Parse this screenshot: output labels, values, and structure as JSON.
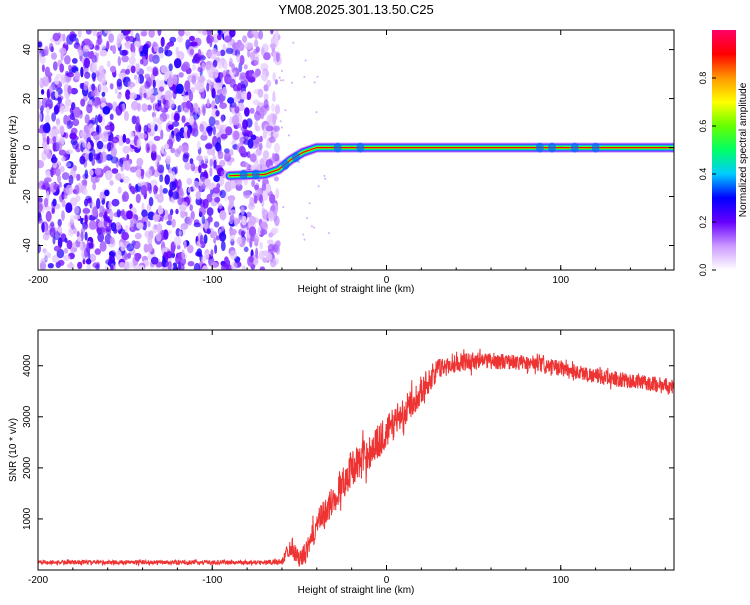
{
  "title": "YM08.2025.301.13.50.C25",
  "chart_data": [
    {
      "type": "heatmap",
      "title": "YM08.2025.301.13.50.C25",
      "xlabel": "Height of straight line (km)",
      "ylabel": "Frequency (Hz)",
      "xlim": [
        -200,
        165
      ],
      "ylim": [
        -50,
        48
      ],
      "x_ticks": [
        -200,
        -100,
        0,
        100
      ],
      "y_ticks": [
        -40,
        -20,
        0,
        20,
        40
      ],
      "colorbar": {
        "label": "Normalized spectral amplitude",
        "range": [
          0,
          1
        ],
        "ticks": [
          "0.0",
          "0.2",
          "0.4",
          "0.6",
          "0.8"
        ],
        "colormap": [
          "#ffffff",
          "#cc99ff",
          "#6600ff",
          "#0000ff",
          "#00ccff",
          "#00ff66",
          "#66ff00",
          "#ffff00",
          "#ff9900",
          "#ff0000",
          "#ff0066"
        ]
      },
      "noise_region": {
        "x_range": [
          -200,
          -68
        ],
        "freq_range": [
          -50,
          48
        ],
        "amplitude_range": [
          0.0,
          0.25
        ]
      },
      "signal_track": {
        "points": [
          [
            -90,
            -11.5
          ],
          [
            -70,
            -11
          ],
          [
            -62,
            -9
          ],
          [
            -55,
            -5
          ],
          [
            -48,
            -2
          ],
          [
            -40,
            0
          ],
          [
            0,
            0
          ],
          [
            165,
            0
          ]
        ],
        "amplitude": 0.9
      }
    },
    {
      "type": "line",
      "xlabel": "Height of straight line (km)",
      "ylabel": "SNR (10 * v/v)",
      "xlim": [
        -200,
        165
      ],
      "ylim": [
        0,
        4700
      ],
      "x_ticks": [
        -200,
        -100,
        0,
        100
      ],
      "y_ticks": [
        1000,
        2000,
        3000,
        4000
      ],
      "color": "#ee3333",
      "series": [
        {
          "name": "SNR",
          "x": [
            -200,
            -150,
            -100,
            -70,
            -60,
            -55,
            -50,
            -45,
            -40,
            -30,
            -20,
            -10,
            0,
            10,
            20,
            30,
            40,
            50,
            60,
            80,
            100,
            120,
            140,
            165
          ],
          "y": [
            150,
            150,
            150,
            150,
            160,
            500,
            200,
            400,
            900,
            1400,
            2000,
            2300,
            2700,
            3100,
            3500,
            3950,
            4050,
            4100,
            4100,
            4050,
            3950,
            3800,
            3700,
            3600
          ],
          "noise": [
            40,
            40,
            40,
            40,
            60,
            220,
            150,
            250,
            250,
            300,
            350,
            350,
            330,
            300,
            250,
            200,
            180,
            180,
            160,
            150,
            150,
            150,
            150,
            150
          ]
        }
      ]
    }
  ]
}
